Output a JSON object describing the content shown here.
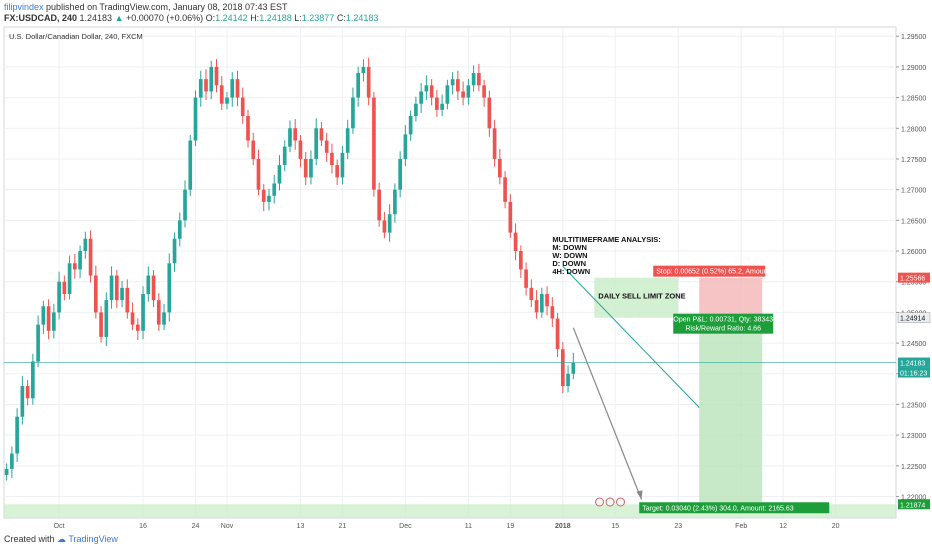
{
  "header": {
    "author": "filipvindex",
    "published": "published on TradingView.com, January 08, 2018 07:43 EST",
    "symbol": "FX:USDCAD, 240",
    "last": "1.24183",
    "change": "+0.00070 (+0.06%)",
    "o_label": "O:",
    "open": "1.24142",
    "h_label": "H:",
    "high": "1.24188",
    "l_label": "L:",
    "low": "1.23877",
    "c_label": "C:",
    "close": "1.24183"
  },
  "footer": {
    "created_with": "Created with",
    "brand": "TradingView"
  },
  "colors": {
    "up": "#26a69a",
    "down": "#ef5350",
    "grid": "#eef0f3",
    "axis": "#555555"
  },
  "chart_data": {
    "type": "candlestick",
    "title": "U.S. Dollar/Canadian Dollar, 240, FXCM",
    "ylim": [
      1.2165,
      1.2965
    ],
    "y_ticks": [
      "1.29500",
      "1.29000",
      "1.28500",
      "1.28000",
      "1.27500",
      "1.27000",
      "1.26500",
      "1.26000",
      "1.25500",
      "1.25000",
      "1.24500",
      "1.24000",
      "1.23500",
      "1.23000",
      "1.22500",
      "1.22000"
    ],
    "x_ticks": [
      "Oct",
      "16",
      "24",
      "Nov",
      "13",
      "21",
      "Dec",
      "11",
      "19",
      "2018",
      "15",
      "23",
      "Feb",
      "12",
      "20"
    ],
    "x_tick_index": [
      10,
      26,
      36,
      42,
      56,
      64,
      76,
      88,
      96,
      106,
      116,
      128,
      140,
      148,
      158
    ],
    "price_path": [
      1.2245,
      1.227,
      1.233,
      1.238,
      1.236,
      1.242,
      1.248,
      1.251,
      1.247,
      1.25,
      1.255,
      1.253,
      1.258,
      1.257,
      1.26,
      1.262,
      1.256,
      1.25,
      1.246,
      1.252,
      1.256,
      1.252,
      1.254,
      1.25,
      1.248,
      1.247,
      1.253,
      1.256,
      1.252,
      1.248,
      1.25,
      1.258,
      1.262,
      1.265,
      1.27,
      1.278,
      1.285,
      1.288,
      1.286,
      1.29,
      1.287,
      1.284,
      1.285,
      1.288,
      1.285,
      1.282,
      1.278,
      1.275,
      1.27,
      1.268,
      1.269,
      1.271,
      1.274,
      1.277,
      1.28,
      1.278,
      1.275,
      1.272,
      1.275,
      1.28,
      1.278,
      1.276,
      1.274,
      1.272,
      1.276,
      1.28,
      1.285,
      1.289,
      1.29,
      1.285,
      1.27,
      1.265,
      1.263,
      1.266,
      1.27,
      1.275,
      1.279,
      1.282,
      1.284,
      1.286,
      1.287,
      1.285,
      1.283,
      1.284,
      1.287,
      1.288,
      1.286,
      1.285,
      1.287,
      1.289,
      1.287,
      1.285,
      1.28,
      1.275,
      1.272,
      1.268,
      1.263,
      1.26,
      1.257,
      1.254,
      1.252,
      1.25,
      1.253,
      1.251,
      1.249,
      1.244,
      1.238,
      1.24,
      1.2418
    ],
    "last_close": 1.24183,
    "annotations": {
      "analysis": [
        "MULTITIMEFRAME ANALYSIS:",
        "M: DOWN",
        "W: DOWN",
        "D: DOWN",
        "4H: DOWN"
      ],
      "zone_label": "DAILY SELL LIMIT ZONE",
      "stop_label": "Stop: 0.00652 (0.52%) 65.2, Amount: 750",
      "pnl_label": "Open P&L: 0.00731, Qty: 38343",
      "rr_label": "Risk/Reward Ratio: 4.66",
      "target_label": "Target: 0.03040 (2.43%) 304.0, Amount: 2165.63"
    },
    "price_tags": {
      "stop": "1.25566",
      "entry": "1.24914",
      "current": "1.24183",
      "countdown": "01:16:23",
      "target": "1.21874"
    },
    "levels": {
      "stop": 1.25566,
      "entry": 1.24914,
      "target": 1.21874
    }
  }
}
